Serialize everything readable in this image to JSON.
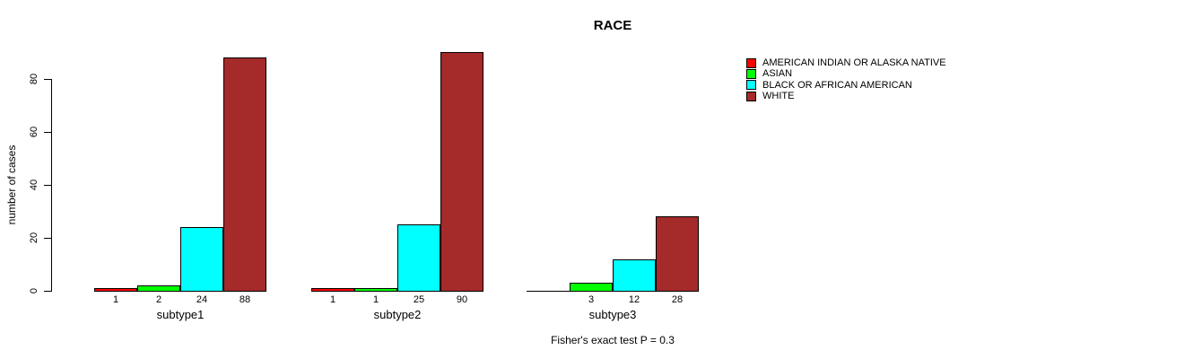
{
  "chart_data": {
    "type": "bar",
    "title": "RACE",
    "ylabel": "number of cases",
    "xlabel": "",
    "note": "Fisher's exact test P = 0.3",
    "yticks": [
      0,
      20,
      40,
      60,
      80
    ],
    "ylim": [
      0,
      90
    ],
    "grid": false,
    "legend_position": "top-right",
    "background_color": "#ffffff",
    "axis_color": "#000000",
    "categories": [
      "subtype1",
      "subtype2",
      "subtype3"
    ],
    "series": [
      {
        "name": "AMERICAN INDIAN OR ALASKA NATIVE",
        "color": "#FF0000",
        "values": [
          1,
          1,
          0
        ]
      },
      {
        "name": "ASIAN",
        "color": "#00FF00",
        "values": [
          2,
          1,
          3
        ]
      },
      {
        "name": "BLACK OR AFRICAN AMERICAN",
        "color": "#00FFFF",
        "values": [
          24,
          25,
          12
        ]
      },
      {
        "name": "WHITE",
        "color": "#A52A2A",
        "values": [
          88,
          90,
          28
        ]
      }
    ],
    "bar_labels": [
      [
        "1",
        "2",
        "24",
        "88"
      ],
      [
        "1",
        "1",
        "25",
        "90"
      ],
      [
        "",
        "3",
        "12",
        "28"
      ]
    ]
  }
}
